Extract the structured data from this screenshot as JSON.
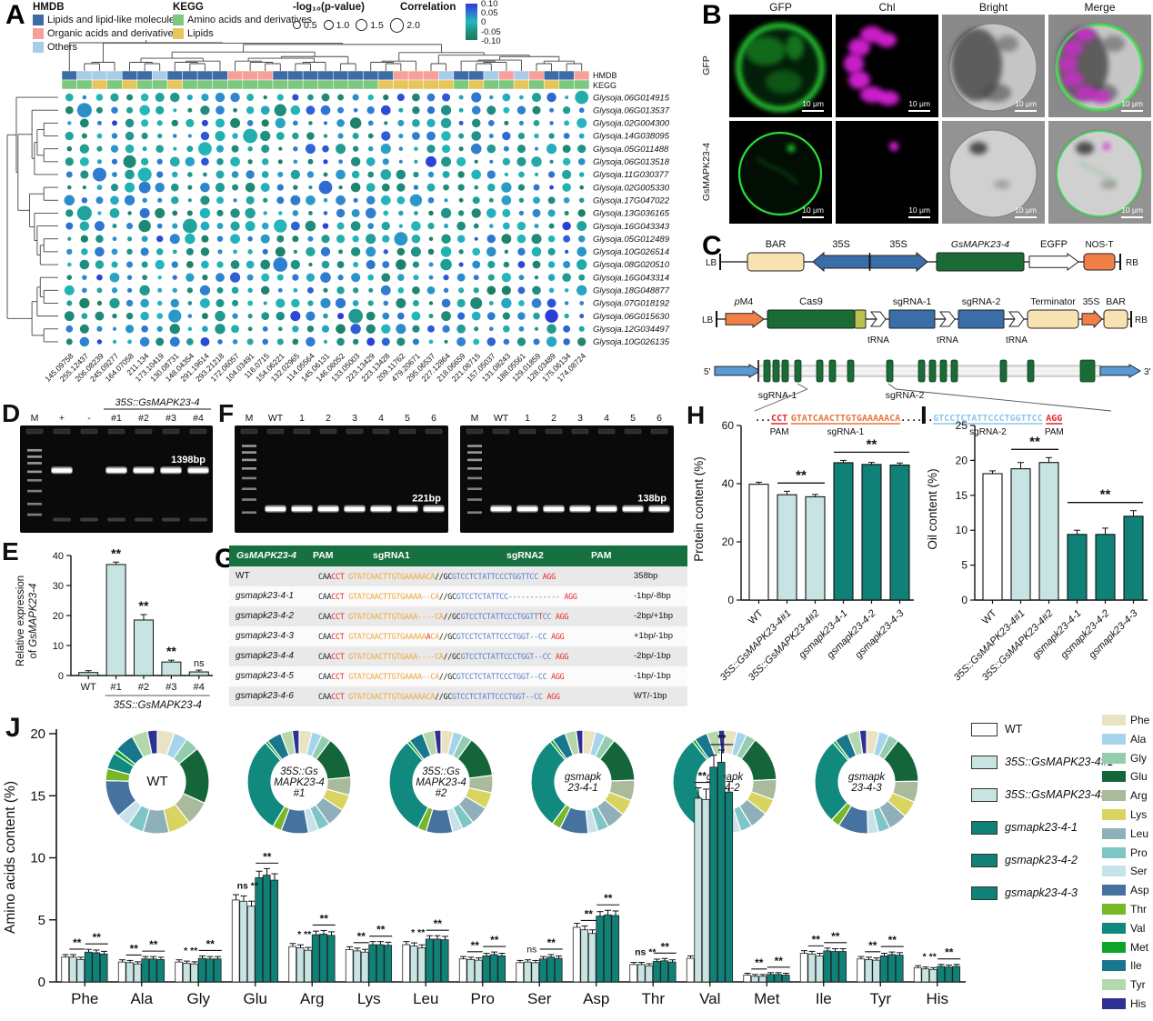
{
  "panel_a": {
    "label": "A",
    "legend": {
      "hmdb_title": "HMDB",
      "hmdb_items": [
        {
          "label": "Lipids and lipid-like molecules",
          "color": "#3d6ca5"
        },
        {
          "label": "Organic acids and derivatives",
          "color": "#f7a099"
        },
        {
          "label": "Others",
          "color": "#a9cde5"
        }
      ],
      "kegg_title": "KEGG",
      "kegg_items": [
        {
          "label": "Amino acids and derivatives",
          "color": "#7cc87f"
        },
        {
          "label": "Lipids",
          "color": "#e8c45d"
        }
      ],
      "pvalue_title": "-log₁₀(p-value)",
      "pvalue_labels": [
        "0.5",
        "1.0",
        "1.5",
        "2.0"
      ],
      "correlation_title": "Correlation",
      "correlation_ticks": [
        "0.10",
        "0.05",
        "0",
        "-0.05",
        "-0.10"
      ]
    },
    "strip_labels": [
      "HMDB",
      "KEGG"
    ],
    "strip_colors": {
      "D": "#3d6ca5",
      "Li": "#a9cde5",
      "S": "#f7a099",
      "G": "#7cc87f",
      "Y": "#e8c45d"
    },
    "hmdb_strip": [
      "D",
      "Li",
      "Li",
      "Li",
      "D",
      "D",
      "Li",
      "D",
      "D",
      "D",
      "D",
      "S",
      "S",
      "S",
      "D",
      "D",
      "D",
      "D",
      "D",
      "D",
      "D",
      "D",
      "S",
      "S",
      "S",
      "Li",
      "D",
      "D",
      "Li",
      "S",
      "Li",
      "S",
      "D",
      "D",
      "S"
    ],
    "kegg_strip": [
      "G",
      "G",
      "Y",
      "G",
      "Y",
      "G",
      "G",
      "Y",
      "G",
      "G",
      "G",
      "G",
      "G",
      "G",
      "G",
      "G",
      "G",
      "G",
      "G",
      "G",
      "G",
      "Y",
      "Y",
      "Y",
      "Y",
      "Y",
      "G",
      "Y",
      "G",
      "G",
      "Y",
      "G",
      "Y",
      "G",
      "G"
    ],
    "row_labels": [
      "Glysoja.06G014915",
      "Glysoja.06G013537",
      "Glysoja.02G004300",
      "Glysoja.14G038095",
      "Glysoja.05G011488",
      "Glysoja.06G013518",
      "Glysoja.11G030377",
      "Glysoja.02G005330",
      "Glysoja.17G047022",
      "Glysoja.13G036165",
      "Glysoja.16G043343",
      "Glysoja.05G012489",
      "Glysoja.10G026514",
      "Glysoja.08G020510",
      "Glysoja.16G043314",
      "Glysoja.18G048877",
      "Glysoja.07G018192",
      "Glysoja.06G015630",
      "Glysoja.12G034497",
      "Glysoja.10G026135"
    ],
    "col_labels": [
      "145.09758",
      "255.12437",
      "206.08239",
      "245.09277",
      "164.07058",
      "211.134",
      "173.10419",
      "130.08731",
      "148.04354",
      "291.19614",
      "293.21218",
      "172.06057",
      "104.03491",
      "116.0715",
      "154.06221",
      "132.02965",
      "114.05564",
      "145.06131",
      "146.06052",
      "133.05003",
      "223.13429",
      "223.13428",
      "209.11762",
      "479.20671",
      "295.06537",
      "227.12864",
      "218.06659",
      "221.06715",
      "157.05037",
      "131.08243",
      "188.05561",
      "129.01859",
      "128.03489",
      "175.06134",
      "174.08724"
    ]
  },
  "panel_b": {
    "label": "B",
    "col_headers": [
      "GFP",
      "Chl",
      "Bright",
      "Merge"
    ],
    "row_labels": [
      "GFP",
      "GsMAPK23-4"
    ],
    "scale_label": "10 μm"
  },
  "panel_c": {
    "label": "C",
    "construct1": {
      "lb": "LB",
      "rb": "RB",
      "bar": "BAR",
      "p35s_l": "35S",
      "p35s_r": "35S",
      "gene": "GsMAPK23-4",
      "egfp": "EGFP",
      "nos": "NOS-T"
    },
    "construct2": {
      "lb": "LB",
      "rb": "RB",
      "pm4": "pM4",
      "cas9": "Cas9",
      "sg1": "sgRNA-1",
      "sg2": "sgRNA-2",
      "term": "Terminator",
      "p35s": "35S",
      "bar": "BAR",
      "trna": "tRNA"
    },
    "gene_model": {
      "five": "5'",
      "three": "3'",
      "sg1": "sgRNA-1",
      "sg2": "sgRNA-2"
    },
    "sequence": {
      "pre": "...",
      "pam1": "CCT",
      "sg1": "GTATCAACTTGTGAAAAACA",
      "mid": "......",
      "sg2": "GTCCTCTATTCCCTGGTTCC",
      "pam2": "AGG",
      "pam_label": "PAM",
      "sg1_label": "sgRNA-1",
      "sg2_label": "sgRNA-2"
    }
  },
  "panel_d": {
    "label": "D",
    "header": "35S::GsMAPK23-4",
    "lanes": [
      "M",
      "+",
      "-",
      "#1",
      "#2",
      "#3",
      "#4"
    ],
    "product_lanes": [
      1,
      3,
      4,
      5,
      6
    ],
    "band_label": "1398bp"
  },
  "panel_f": {
    "label": "F",
    "gels": [
      {
        "lanes": [
          "M",
          "WT",
          "1",
          "2",
          "3",
          "4",
          "5",
          "6"
        ],
        "product_lanes": [
          1,
          2,
          3,
          4,
          5,
          6,
          7
        ],
        "band_label": "221bp"
      },
      {
        "lanes": [
          "M",
          "WT",
          "1",
          "2",
          "3",
          "4",
          "5",
          "6"
        ],
        "product_lanes": [
          1,
          2,
          3,
          4,
          5,
          6,
          7
        ],
        "band_label": "138bp"
      }
    ]
  },
  "panel_g": {
    "label": "G",
    "header": {
      "gene": "GsMAPK23-4",
      "pam1": "PAM",
      "sg1": "sgRNA1",
      "sg2": "sgRNA2",
      "pam2": "PAM"
    },
    "rows": [
      {
        "name": "WT",
        "italic": false,
        "seq": [
          [
            "k",
            "CAA"
          ],
          [
            "r",
            "CCT"
          ],
          [
            "k",
            " "
          ],
          [
            "o",
            "GTATCAACTTGTGAAAAACA"
          ],
          [
            "k",
            "//GC"
          ],
          [
            "b",
            "GTCCTCTATTCCCTGGTTCC"
          ],
          [
            "k",
            " "
          ],
          [
            "r",
            "AGG"
          ]
        ],
        "note": "358bp"
      },
      {
        "name": "gsmapk23-4-1",
        "italic": true,
        "seq": [
          [
            "k",
            "CAA"
          ],
          [
            "r",
            "CCT"
          ],
          [
            "k",
            " "
          ],
          [
            "o",
            "GTATCAACTTGTGAAAA--CA"
          ],
          [
            "k",
            "//GC"
          ],
          [
            "b",
            "GTCCTCTATTCC------------"
          ],
          [
            "k",
            " "
          ],
          [
            "r",
            "AGG"
          ]
        ],
        "note": "-1bp/-8bp"
      },
      {
        "name": "gsmapk23-4-2",
        "italic": true,
        "seq": [
          [
            "k",
            "CAA"
          ],
          [
            "r",
            "CCT"
          ],
          [
            "k",
            " "
          ],
          [
            "o",
            "GTATCAACTTGTGAAA----CA"
          ],
          [
            "k",
            "//GC"
          ],
          [
            "b",
            "GTCCTCTATTCCCTGGTT"
          ],
          [
            "r",
            "T"
          ],
          [
            "b",
            "CC"
          ],
          [
            "k",
            " "
          ],
          [
            "r",
            "AGG"
          ]
        ],
        "note": "-2bp/+1bp"
      },
      {
        "name": "gsmapk23-4-3",
        "italic": true,
        "seq": [
          [
            "k",
            "CAA"
          ],
          [
            "r",
            "CCT"
          ],
          [
            "k",
            " "
          ],
          [
            "o",
            "GTATCAACTTGTGAAAAA"
          ],
          [
            "r",
            "A"
          ],
          [
            "o",
            "CA"
          ],
          [
            "k",
            "//GC"
          ],
          [
            "b",
            "GTCCTCTATTCCCTGGT--CC"
          ],
          [
            "k",
            " "
          ],
          [
            "r",
            "AGG"
          ]
        ],
        "note": "+1bp/-1bp"
      },
      {
        "name": "gsmapk23-4-4",
        "italic": true,
        "seq": [
          [
            "k",
            "CAA"
          ],
          [
            "r",
            "CCT"
          ],
          [
            "k",
            " "
          ],
          [
            "o",
            "GTATCAACTTGTGAAA----CA"
          ],
          [
            "k",
            "//GC"
          ],
          [
            "b",
            "GTCCTCTATTCCCTGGT--CC"
          ],
          [
            "k",
            " "
          ],
          [
            "r",
            "AGG"
          ]
        ],
        "note": "-2bp/-1bp"
      },
      {
        "name": "gsmapk23-4-5",
        "italic": true,
        "seq": [
          [
            "k",
            "CAA"
          ],
          [
            "r",
            "CCT"
          ],
          [
            "k",
            " "
          ],
          [
            "o",
            "GTATCAACTTGTGAAAA--CA"
          ],
          [
            "k",
            "//GC"
          ],
          [
            "b",
            "GTCCTCTATTCCCTGGT--CC"
          ],
          [
            "k",
            " "
          ],
          [
            "r",
            "AGG"
          ]
        ],
        "note": "-1bp/-1bp"
      },
      {
        "name": "gsmapk23-4-6",
        "italic": true,
        "seq": [
          [
            "k",
            "CAA"
          ],
          [
            "r",
            "CCT"
          ],
          [
            "k",
            " "
          ],
          [
            "o",
            "GTATCAACTTGTGAAAAACA"
          ],
          [
            "k",
            "//GC"
          ],
          [
            "b",
            "GTCCTCTATTCCCTGGT--CC"
          ],
          [
            "k",
            " "
          ],
          [
            "r",
            "AGG"
          ]
        ],
        "note": "WT/-1bp"
      }
    ],
    "seq_colors": {
      "k": "#222222",
      "r": "#e8262a",
      "o": "#f0a73a",
      "b": "#5b79cc"
    }
  },
  "panel_e_label": "E",
  "panel_h_label": "H",
  "panel_i_label": "I",
  "panel_j_label": "J",
  "chart_data": [
    {
      "id": "E",
      "type": "bar",
      "ylabel_line1": "Relative expression",
      "ylabel_line2_prefix": "of ",
      "ylabel_line2_gene": "GsMAPK23-4",
      "categories": [
        "WT",
        "#1",
        "#2",
        "#3",
        "#4"
      ],
      "values": [
        1,
        37,
        18.5,
        4.5,
        1.2
      ],
      "errors": [
        0.2,
        0.8,
        1.8,
        0.6,
        0.3
      ],
      "sig": [
        "",
        "**",
        "**",
        "**",
        "ns"
      ],
      "group_label": "35S::GsMAPK23-4",
      "ylim": [
        0,
        40
      ],
      "yticks": [
        0,
        10,
        20,
        30,
        40
      ],
      "bar_color": "#c7e4e2"
    },
    {
      "id": "H",
      "type": "bar",
      "ylabel": "Protein content (%)",
      "categories": [
        "WT",
        "35S::GsMAPK23-4#1",
        "35S::GsMAPK23-4#2",
        "gsmapk23-4-1",
        "gsmapk23-4-2",
        "gsmapk23-4-3"
      ],
      "values": [
        39.8,
        36.2,
        35.5,
        47.2,
        46.6,
        46.4
      ],
      "errors": [
        0.7,
        1.2,
        0.8,
        0.8,
        0.7,
        0.7
      ],
      "bar_colors": [
        "#ffffff",
        "#c7e4e2",
        "#c7e4e2",
        "#0f8176",
        "#0f8176",
        "#0f8176"
      ],
      "ylim": [
        0,
        60
      ],
      "yticks": [
        0,
        20,
        40,
        60
      ],
      "sig_pairs": [
        {
          "from": 1,
          "to": 2,
          "label": "**"
        },
        {
          "from": 3,
          "to": 5,
          "label": "**"
        }
      ]
    },
    {
      "id": "I",
      "type": "bar",
      "ylabel": "Oil content (%)",
      "categories": [
        "WT",
        "35S::GsMAPK23-4#1",
        "35S::GsMAPK23-4#2",
        "gsmapk23-4-1",
        "gsmapk23-4-2",
        "gsmapk23-4-3"
      ],
      "values": [
        18.1,
        18.8,
        19.7,
        9.4,
        9.4,
        12.0
      ],
      "errors": [
        0.4,
        0.9,
        0.7,
        0.6,
        0.9,
        0.8
      ],
      "bar_colors": [
        "#ffffff",
        "#c7e4e2",
        "#c7e4e2",
        "#0f8176",
        "#0f8176",
        "#0f8176"
      ],
      "ylim": [
        0,
        25
      ],
      "yticks": [
        0,
        5,
        10,
        15,
        20,
        25
      ],
      "sig_pairs": [
        {
          "from": 1,
          "to": 2,
          "label": "**"
        },
        {
          "from": 3,
          "to": 5,
          "label": "**"
        }
      ]
    },
    {
      "id": "J",
      "type": "grouped-bar",
      "ylabel": "Amino acids content (%)",
      "ylim": [
        0,
        20
      ],
      "yticks": [
        0,
        5,
        10,
        15,
        20
      ],
      "categories": [
        "Phe",
        "Ala",
        "Gly",
        "Glu",
        "Arg",
        "Lys",
        "Leu",
        "Pro",
        "Ser",
        "Asp",
        "Thr",
        "Val",
        "Met",
        "Ile",
        "Tyr",
        "His"
      ],
      "aa_colors": [
        "#e9e3c4",
        "#a6d4ec",
        "#93ccae",
        "#14663a",
        "#a9bb9a",
        "#d9d35f",
        "#8fb0b8",
        "#7ec6c6",
        "#c8e2ea",
        "#45729f",
        "#76b82a",
        "#12897f",
        "#0fa32b",
        "#18768d",
        "#b4d8ac",
        "#2e3192"
      ],
      "series": [
        {
          "name": "WT",
          "italic": false,
          "color": "#ffffff",
          "values": [
            2.0,
            1.6,
            1.6,
            6.6,
            2.85,
            2.6,
            3.0,
            1.85,
            1.55,
            4.4,
            1.4,
            1.9,
            0.55,
            2.3,
            1.85,
            1.15
          ]
        },
        {
          "name": "35S::GsMAPK23-4#1",
          "italic": true,
          "color": "#c7e4e2",
          "values": [
            2.0,
            1.55,
            1.5,
            6.5,
            2.75,
            2.5,
            2.9,
            1.8,
            1.6,
            4.2,
            1.4,
            14.8,
            0.45,
            2.25,
            1.8,
            1.05
          ]
        },
        {
          "name": "35S::GsMAPK23-4#2",
          "italic": true,
          "color": "#c7e4e2",
          "values": [
            1.8,
            1.45,
            1.45,
            6.1,
            2.55,
            2.4,
            2.75,
            1.75,
            1.55,
            3.9,
            1.3,
            14.7,
            0.45,
            2.1,
            1.75,
            1.0
          ]
        },
        {
          "name": "gsmapk23-4-1",
          "italic": true,
          "color": "#0f8176",
          "values": [
            2.4,
            1.85,
            1.9,
            8.4,
            3.8,
            3.0,
            3.45,
            2.1,
            1.85,
            5.3,
            1.65,
            17.3,
            0.6,
            2.5,
            2.1,
            1.25
          ]
        },
        {
          "name": "gsmapk23-4-2",
          "italic": true,
          "color": "#0f8176",
          "values": [
            2.35,
            1.85,
            1.85,
            8.6,
            3.85,
            3.0,
            3.45,
            2.2,
            2.0,
            5.4,
            1.7,
            17.7,
            0.6,
            2.45,
            2.2,
            1.2
          ]
        },
        {
          "name": "gsmapk23-4-3",
          "italic": true,
          "color": "#0f8176",
          "values": [
            2.25,
            1.8,
            1.85,
            8.2,
            3.75,
            2.95,
            3.4,
            2.1,
            1.9,
            5.35,
            1.6,
            15.3,
            0.55,
            2.45,
            2.15,
            1.25
          ]
        }
      ],
      "sig": [
        [
          "**",
          "**"
        ],
        [
          "**",
          "**"
        ],
        [
          "* **",
          "**"
        ],
        [
          "ns **",
          "**"
        ],
        [
          "* **",
          "**"
        ],
        [
          "**",
          "**"
        ],
        [
          "* **",
          "**"
        ],
        [
          "**",
          "**"
        ],
        [
          "ns",
          "**"
        ],
        [
          "**",
          "**"
        ],
        [
          "ns **",
          "**"
        ],
        [
          "**",
          "**"
        ],
        [
          "**",
          "**"
        ],
        [
          "**",
          "**"
        ],
        [
          "**",
          "**"
        ],
        [
          "* **",
          "**"
        ]
      ],
      "donut_labels": [
        [
          "WT"
        ],
        [
          "35S::Gs",
          "MAPK23-4",
          "#1"
        ],
        [
          "35S::Gs",
          "MAPK23-4",
          "#2"
        ],
        [
          "gsmapk",
          "23-4-1"
        ],
        [
          "gsmapk",
          "23-4-2"
        ],
        [
          "gsmapk",
          "23-4-3"
        ]
      ]
    }
  ]
}
